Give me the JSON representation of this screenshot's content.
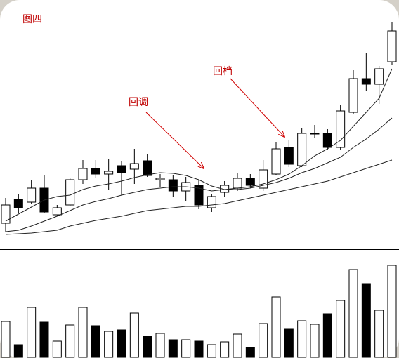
{
  "chart_data": [
    {
      "type": "candlestick",
      "title": "图四",
      "annotations": [
        "回调",
        "回档"
      ],
      "open": [
        42,
        76,
        72,
        92,
        54,
        68,
        104,
        120,
        112,
        124,
        119,
        131,
        104,
        104,
        88,
        96,
        64,
        86,
        92,
        106,
        92,
        112,
        150,
        124,
        169,
        170,
        150,
        200,
        248,
        240,
        272
      ],
      "high": [
        78,
        84,
        104,
        110,
        68,
        106,
        132,
        132,
        134,
        130,
        148,
        140,
        112,
        110,
        108,
        104,
        84,
        102,
        114,
        112,
        132,
        158,
        160,
        178,
        182,
        176,
        210,
        260,
        284,
        266,
        328
      ],
      "low": [
        30,
        56,
        70,
        56,
        52,
        66,
        98,
        106,
        90,
        82,
        98,
        108,
        94,
        80,
        74,
        62,
        58,
        80,
        88,
        92,
        88,
        110,
        122,
        122,
        164,
        146,
        146,
        198,
        230,
        212,
        268
      ],
      "close": [
        68,
        64,
        92,
        58,
        64,
        104,
        120,
        112,
        116,
        114,
        127,
        110,
        106,
        88,
        100,
        68,
        80,
        96,
        106,
        96,
        118,
        148,
        126,
        170,
        170,
        150,
        202,
        248,
        240,
        262,
        316
      ],
      "up_color": "#ffffff",
      "down_color": "#000000",
      "edge_color": "#000000",
      "series": [
        {
          "color": "#222222",
          "values": [
            45,
            55,
            65,
            75,
            80,
            82,
            90,
            95,
            98,
            102,
            107,
            111,
            114,
            113,
            110,
            104,
            95,
            90,
            92,
            94,
            98,
            104,
            112,
            124,
            138,
            148,
            160,
            180,
            200,
            220,
            262
          ]
        },
        {
          "color": "#222222",
          "values": [
            30,
            32,
            38,
            45,
            52,
            60,
            68,
            73,
            77,
            82,
            86,
            90,
            92,
            94,
            94,
            92,
            88,
            90,
            90,
            92,
            96,
            100,
            106,
            114,
            120,
            128,
            136,
            150,
            162,
            176,
            192
          ]
        },
        {
          "color": "#222222",
          "values": [
            26,
            27,
            28,
            30,
            32,
            38,
            42,
            46,
            49,
            52,
            56,
            60,
            62,
            64,
            66,
            66,
            68,
            70,
            74,
            78,
            82,
            86,
            90,
            94,
            98,
            102,
            108,
            114,
            120,
            126,
            132
          ]
        }
      ],
      "ylim": [
        0,
        340
      ]
    },
    {
      "type": "bar",
      "values": [
        52,
        19,
        72,
        51,
        24,
        47,
        72,
        46,
        38,
        40,
        64,
        31,
        35,
        26,
        26,
        24,
        19,
        23,
        34,
        15,
        49,
        87,
        42,
        53,
        48,
        63,
        82,
        126,
        106,
        68,
        132
      ],
      "ylim": [
        0,
        135
      ]
    }
  ]
}
